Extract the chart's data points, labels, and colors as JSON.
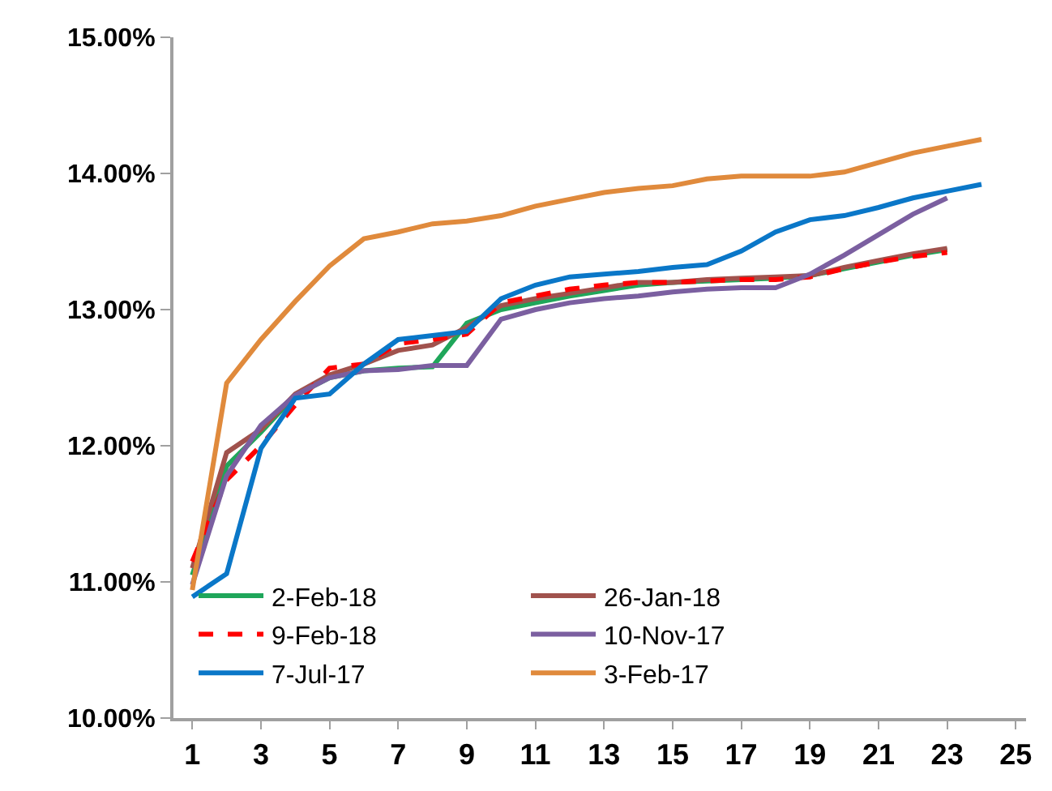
{
  "chart_data": {
    "type": "line",
    "x": [
      1,
      2,
      3,
      4,
      5,
      6,
      7,
      8,
      9,
      10,
      11,
      12,
      13,
      14,
      15,
      16,
      17,
      18,
      19,
      20,
      21,
      22,
      23,
      24
    ],
    "series": [
      {
        "name": "2-Feb-18",
        "color": "#1fa65a",
        "values": [
          11.05,
          11.85,
          12.1,
          12.37,
          12.5,
          12.55,
          12.57,
          12.58,
          12.9,
          13.0,
          13.05,
          13.1,
          13.14,
          13.18,
          13.2,
          13.21,
          13.22,
          13.23,
          13.25,
          13.3,
          13.35,
          13.4,
          13.44,
          null
        ]
      },
      {
        "name": "26-Jan-18",
        "color": "#a0524d",
        "values": [
          11.1,
          11.95,
          12.12,
          12.38,
          12.52,
          12.6,
          12.7,
          12.74,
          12.87,
          13.03,
          13.08,
          13.12,
          13.16,
          13.2,
          13.2,
          13.22,
          13.23,
          13.24,
          13.25,
          13.31,
          13.36,
          13.41,
          13.45,
          null
        ]
      },
      {
        "name": "9-Feb-18",
        "color": "#ff0000",
        "line_style": "dashed",
        "values": [
          11.15,
          11.75,
          12.0,
          12.3,
          12.57,
          12.6,
          12.75,
          12.78,
          12.82,
          13.05,
          13.1,
          13.15,
          13.18,
          13.2,
          13.2,
          13.21,
          13.22,
          13.22,
          13.24,
          13.3,
          13.35,
          13.39,
          13.42,
          null
        ]
      },
      {
        "name": "10-Nov-17",
        "color": "#7b5fa0",
        "values": [
          10.98,
          11.78,
          12.15,
          12.37,
          12.5,
          12.55,
          12.56,
          12.59,
          12.59,
          12.93,
          13.0,
          13.05,
          13.08,
          13.1,
          13.13,
          13.15,
          13.16,
          13.16,
          13.26,
          13.4,
          13.55,
          13.7,
          13.82,
          null
        ]
      },
      {
        "name": "7-Jul-17",
        "color": "#0a77c8",
        "values": [
          10.89,
          11.06,
          11.98,
          12.35,
          12.38,
          12.6,
          12.78,
          12.81,
          12.84,
          13.08,
          13.18,
          13.24,
          13.26,
          13.28,
          13.31,
          13.33,
          13.43,
          13.57,
          13.66,
          13.69,
          13.75,
          13.82,
          13.87,
          13.92
        ]
      },
      {
        "name": "3-Feb-17",
        "color": "#e08a3c",
        "values": [
          10.94,
          12.46,
          12.78,
          13.06,
          13.32,
          13.52,
          13.57,
          13.63,
          13.65,
          13.69,
          13.76,
          13.81,
          13.86,
          13.89,
          13.91,
          13.96,
          13.98,
          13.98,
          13.98,
          14.01,
          14.08,
          14.15,
          14.2,
          14.25
        ]
      }
    ],
    "xlim": [
      0.45,
      25.3
    ],
    "xticks": [
      1,
      3,
      5,
      7,
      9,
      11,
      13,
      15,
      17,
      19,
      21,
      23,
      25
    ],
    "ylim": [
      10,
      15
    ],
    "yticks": [
      {
        "value": 10,
        "label": "10.00%"
      },
      {
        "value": 11,
        "label": "11.00%"
      },
      {
        "value": 12,
        "label": "12.00%"
      },
      {
        "value": 13,
        "label": "13.00%"
      },
      {
        "value": 14,
        "label": "14.00%"
      },
      {
        "value": 15,
        "label": "15.00%"
      }
    ],
    "legend": "bottom",
    "marker": "none",
    "line_style": "solid"
  }
}
